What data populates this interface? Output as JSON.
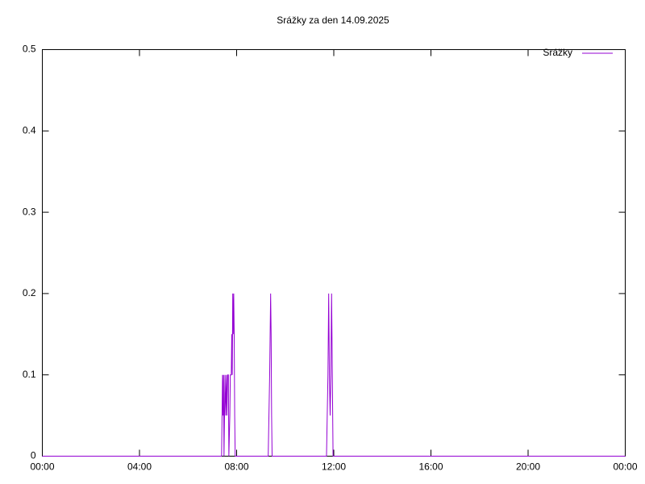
{
  "chart_data": {
    "type": "line",
    "title": "Srážky za den 14.09.2025",
    "x": [
      0,
      7.38,
      7.4,
      7.42,
      7.44,
      7.46,
      7.48,
      7.52,
      7.55,
      7.58,
      7.6,
      7.63,
      7.66,
      7.68,
      7.72,
      7.74,
      7.78,
      7.8,
      7.82,
      7.84,
      7.86,
      7.88,
      7.9,
      7.92,
      7.94,
      9.3,
      9.33,
      9.36,
      9.38,
      9.4,
      9.42,
      9.44,
      9.46,
      11.7,
      11.73,
      11.76,
      11.79,
      11.82,
      11.85,
      11.88,
      11.91,
      11.94,
      11.97,
      24
    ],
    "series": [
      {
        "name": "Srážky",
        "color": "#9400d3",
        "values": [
          0,
          0,
          0.05,
          0.1,
          0.05,
          0.1,
          0,
          0.1,
          0.05,
          0.1,
          0.05,
          0.1,
          0.1,
          0,
          0.05,
          0.1,
          0.1,
          0.15,
          0.1,
          0.2,
          0.15,
          0.2,
          0.15,
          0.05,
          0,
          0,
          0.05,
          0.1,
          0.15,
          0.2,
          0.15,
          0.05,
          0,
          0,
          0.05,
          0.1,
          0.2,
          0.1,
          0.05,
          0.1,
          0.2,
          0.1,
          0,
          0
        ]
      }
    ],
    "xlim": [
      0,
      24
    ],
    "xticks": [
      {
        "value": 0,
        "label": "00:00"
      },
      {
        "value": 4,
        "label": "04:00"
      },
      {
        "value": 8,
        "label": "08:00"
      },
      {
        "value": 12,
        "label": "12:00"
      },
      {
        "value": 16,
        "label": "16:00"
      },
      {
        "value": 20,
        "label": "20:00"
      },
      {
        "value": 24,
        "label": "00:00"
      }
    ],
    "ylim": [
      0,
      0.5
    ],
    "yticks": [
      0,
      0.1,
      0.2,
      0.3,
      0.4,
      0.5
    ],
    "legend": "top-right",
    "grid": false
  }
}
